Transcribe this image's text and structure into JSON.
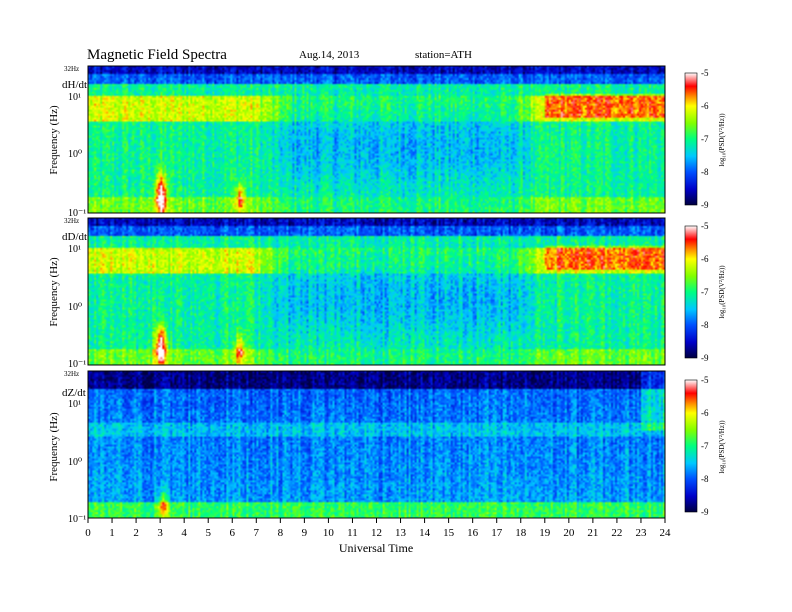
{
  "header": {
    "title": "Magnetic  Field  Spectra",
    "date": "Aug.14, 2013",
    "station": "station=ATH"
  },
  "chart_data": [
    {
      "type": "heatmap",
      "component": "dH/dt",
      "ylabel": "Frequency  (Hz)",
      "yscale": "log",
      "y_tick_labels": [
        "10⁻¹",
        "10⁰",
        "10¹"
      ],
      "y_top_label": "32Hz",
      "colorbar": {
        "min": -9,
        "max": -5,
        "ticks": [
          "-9",
          "-8",
          "-7",
          "-6",
          "-5"
        ],
        "label": "log₁₀(PSD(V²/Hz))"
      }
    },
    {
      "type": "heatmap",
      "component": "dD/dt",
      "ylabel": "Frequency  (Hz)",
      "yscale": "log",
      "y_tick_labels": [
        "10⁻¹",
        "10⁰",
        "10¹"
      ],
      "y_top_label": "32Hz",
      "colorbar": {
        "min": -9,
        "max": -5,
        "ticks": [
          "-9",
          "-8",
          "-7",
          "-6",
          "-5"
        ],
        "label": "log₁₀(PSD(V²/Hz))"
      }
    },
    {
      "type": "heatmap",
      "component": "dZ/dt",
      "ylabel": "Frequency  (Hz)",
      "yscale": "log",
      "y_tick_labels": [
        "10⁻¹",
        "10⁰",
        "10¹"
      ],
      "y_top_label": "32Hz",
      "xlabel": "Universal Time",
      "x_ticks": [
        "0",
        "1",
        "2",
        "3",
        "4",
        "5",
        "6",
        "7",
        "8",
        "9",
        "10",
        "11",
        "12",
        "13",
        "14",
        "15",
        "16",
        "17",
        "18",
        "19",
        "20",
        "21",
        "22",
        "23",
        "24"
      ],
      "colorbar": {
        "min": -9,
        "max": -5,
        "ticks": [
          "-9",
          "-8",
          "-7",
          "-6",
          "-5"
        ],
        "label": "log₁₀(PSD(V²/Hz))"
      }
    }
  ]
}
